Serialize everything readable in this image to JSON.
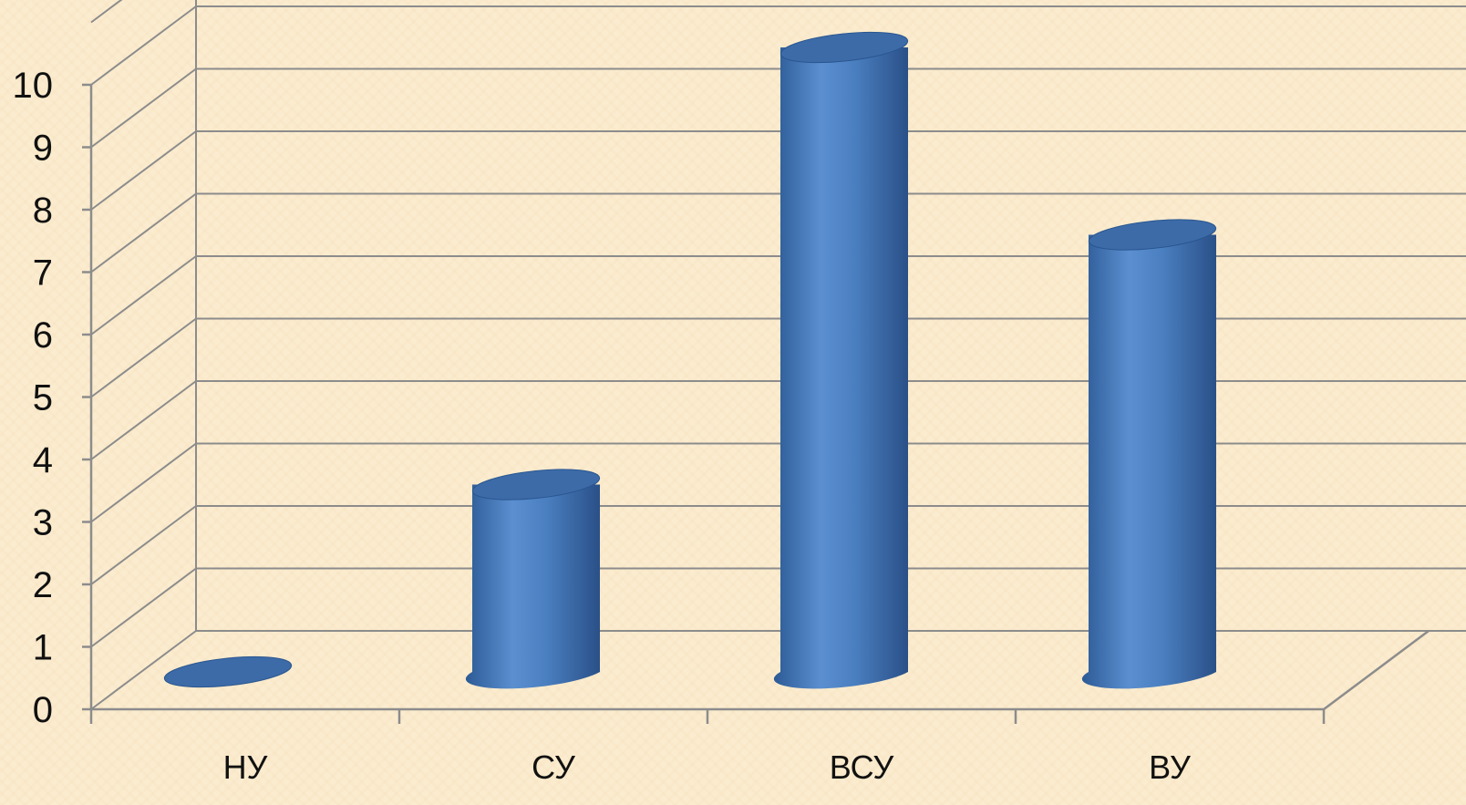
{
  "chart_data": {
    "type": "bar",
    "style": "3d-cylinder",
    "categories": [
      "НУ",
      "СУ",
      "ВСУ",
      "ВУ"
    ],
    "values": [
      0,
      3,
      10,
      7
    ],
    "title": "",
    "xlabel": "",
    "ylabel": "",
    "ylim": [
      0,
      10
    ],
    "yticks": [
      "0",
      "1",
      "2",
      "3",
      "4",
      "5",
      "6",
      "7",
      "8",
      "9",
      "10"
    ],
    "grid": true,
    "legend": "none",
    "colors": {
      "bar": "#4f81bd",
      "bar_dark": "#2a5690",
      "bar_top": "#3d6ba8",
      "grid": "#8c8c8c",
      "background": "#fbeccf"
    }
  }
}
